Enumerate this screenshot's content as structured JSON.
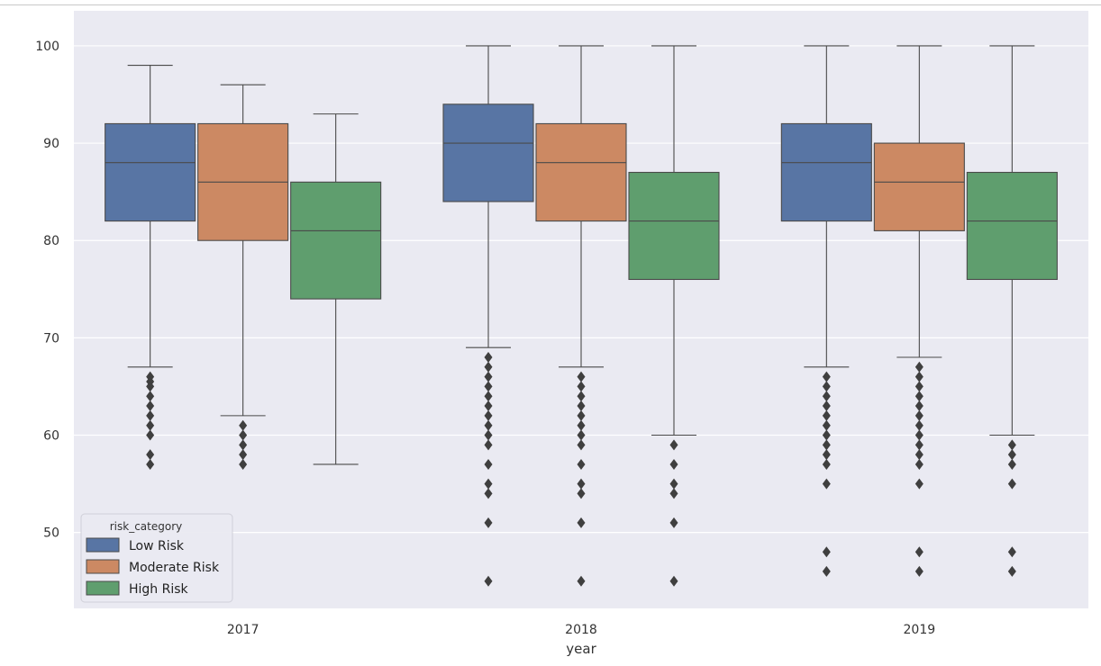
{
  "chart_data": {
    "type": "box",
    "xlabel": "year",
    "ylabel": "",
    "ylim": [
      42.2,
      103.6
    ],
    "yticks": [
      50,
      60,
      70,
      80,
      90,
      100
    ],
    "categories": [
      "2017",
      "2018",
      "2019"
    ],
    "grid": true,
    "legend": {
      "title": "risk_category",
      "placement": "lower-left",
      "entries": [
        "Low Risk",
        "Moderate Risk",
        "High Risk"
      ]
    },
    "colors": {
      "background": "#eaeaf2",
      "grid": "#ffffff",
      "line": "#4a4a4a",
      "Low Risk": "#5875a4",
      "Moderate Risk": "#cc8963",
      "High Risk": "#5f9e6e"
    },
    "series": [
      {
        "name": "Low Risk",
        "boxes": [
          {
            "category": "2017",
            "whisker_low": 67,
            "q1": 82,
            "median": 88,
            "q3": 92,
            "whisker_high": 98,
            "outliers": [
              66,
              65.5,
              65,
              64,
              63,
              62,
              61,
              60,
              58,
              57
            ]
          },
          {
            "category": "2018",
            "whisker_low": 69,
            "q1": 84,
            "median": 90,
            "q3": 94,
            "whisker_high": 100,
            "outliers": [
              68,
              67,
              66,
              65,
              64,
              63,
              62,
              61,
              60,
              59,
              57,
              55,
              54,
              51,
              45
            ]
          },
          {
            "category": "2019",
            "whisker_low": 67,
            "q1": 82,
            "median": 88,
            "q3": 92,
            "whisker_high": 100,
            "outliers": [
              66,
              65,
              64,
              63,
              62,
              61,
              60,
              59,
              58,
              57,
              55,
              48,
              46
            ]
          }
        ]
      },
      {
        "name": "Moderate Risk",
        "boxes": [
          {
            "category": "2017",
            "whisker_low": 62,
            "q1": 80,
            "median": 86,
            "q3": 92,
            "whisker_high": 96,
            "outliers": [
              61,
              60,
              59,
              58,
              57
            ]
          },
          {
            "category": "2018",
            "whisker_low": 67,
            "q1": 82,
            "median": 88,
            "q3": 92,
            "whisker_high": 100,
            "outliers": [
              66,
              65,
              64,
              63,
              62,
              61,
              60,
              59,
              57,
              55,
              54,
              51,
              45
            ]
          },
          {
            "category": "2019",
            "whisker_low": 68,
            "q1": 81,
            "median": 86,
            "q3": 90,
            "whisker_high": 100,
            "outliers": [
              67,
              66,
              65,
              64,
              63,
              62,
              61,
              60,
              59,
              58,
              57,
              55,
              48,
              46
            ]
          }
        ]
      },
      {
        "name": "High Risk",
        "boxes": [
          {
            "category": "2017",
            "whisker_low": 57,
            "q1": 74,
            "median": 81,
            "q3": 86,
            "whisker_high": 93,
            "outliers": []
          },
          {
            "category": "2018",
            "whisker_low": 60,
            "q1": 76,
            "median": 82,
            "q3": 87,
            "whisker_high": 100,
            "outliers": [
              59,
              57,
              55,
              54,
              51,
              45
            ]
          },
          {
            "category": "2019",
            "whisker_low": 60,
            "q1": 76,
            "median": 82,
            "q3": 87,
            "whisker_high": 100,
            "outliers": [
              59,
              58,
              57,
              55,
              48,
              46
            ]
          }
        ]
      }
    ]
  }
}
